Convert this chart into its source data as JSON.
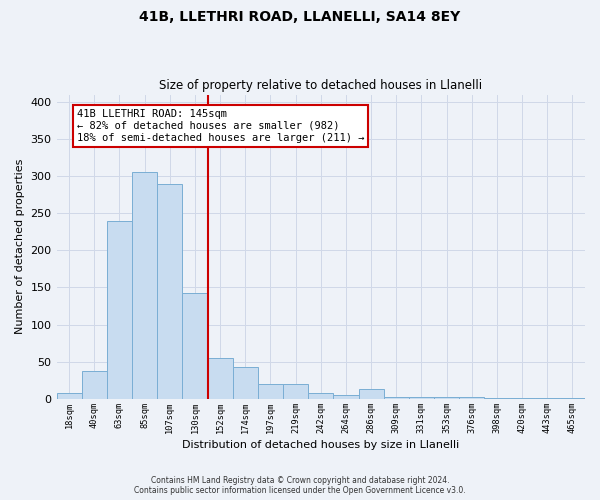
{
  "title": "41B, LLETHRI ROAD, LLANELLI, SA14 8EY",
  "subtitle": "Size of property relative to detached houses in Llanelli",
  "xlabel": "Distribution of detached houses by size in Llanelli",
  "ylabel": "Number of detached properties",
  "bar_labels": [
    "18sqm",
    "40sqm",
    "63sqm",
    "85sqm",
    "107sqm",
    "130sqm",
    "152sqm",
    "174sqm",
    "197sqm",
    "219sqm",
    "242sqm",
    "264sqm",
    "286sqm",
    "309sqm",
    "331sqm",
    "353sqm",
    "376sqm",
    "398sqm",
    "420sqm",
    "443sqm",
    "465sqm"
  ],
  "bar_heights": [
    8,
    37,
    240,
    305,
    290,
    143,
    55,
    43,
    20,
    20,
    8,
    5,
    13,
    3,
    2,
    2,
    2,
    1,
    1,
    1,
    1
  ],
  "bar_color": "#c8dcf0",
  "bar_edge_color": "#7aaed4",
  "property_line_label": "41B LLETHRI ROAD: 145sqm",
  "annotation_line1": "← 82% of detached houses are smaller (982)",
  "annotation_line2": "18% of semi-detached houses are larger (211) →",
  "annotation_box_color": "#ffffff",
  "annotation_box_edge": "#cc0000",
  "line_color": "#cc0000",
  "ylim": [
    0,
    410
  ],
  "yticks": [
    0,
    50,
    100,
    150,
    200,
    250,
    300,
    350,
    400
  ],
  "footnote1": "Contains HM Land Registry data © Crown copyright and database right 2024.",
  "footnote2": "Contains public sector information licensed under the Open Government Licence v3.0.",
  "bg_color": "#eef2f8",
  "grid_color": "#d0d8e8"
}
